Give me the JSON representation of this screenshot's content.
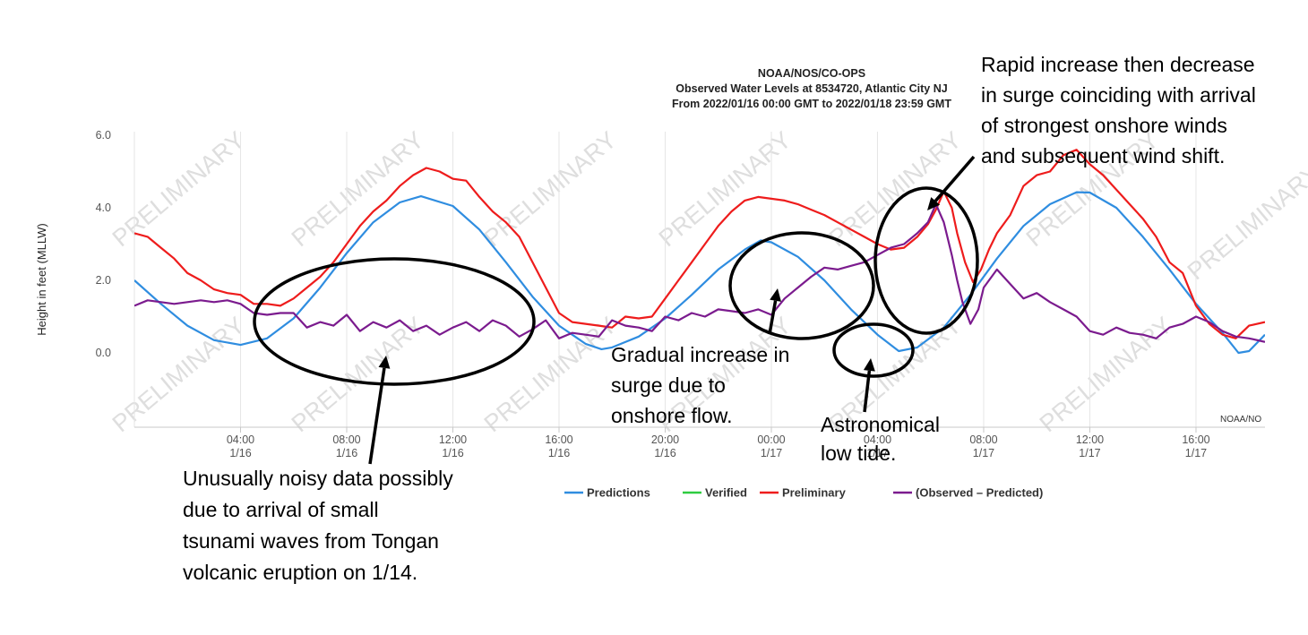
{
  "chart_data": {
    "type": "line",
    "title": "NOAA/NOS/CO-OPS",
    "subtitle": [
      "Observed Water Levels at 8534720, Atlantic City NJ",
      "From 2022/01/16 00:00 GMT to 2022/01/18 23:59 GMT"
    ],
    "ylabel": "Height in feet (MLLW)",
    "xlabel": "",
    "ylim": [
      -2.05,
      6.1
    ],
    "xlim": [
      0,
      42.6
    ],
    "x_unit": "hours since 2022/01/16 00:00 GMT",
    "y_ticks": [
      "6.0",
      "4.0",
      "2.0",
      "0.0"
    ],
    "y_tick_values": [
      6,
      4,
      2,
      0
    ],
    "x_ticks": [
      {
        "x": 4,
        "time": "04:00",
        "date": "1/16"
      },
      {
        "x": 8,
        "time": "08:00",
        "date": "1/16"
      },
      {
        "x": 12,
        "time": "12:00",
        "date": "1/16"
      },
      {
        "x": 16,
        "time": "16:00",
        "date": "1/16"
      },
      {
        "x": 20,
        "time": "20:00",
        "date": "1/16"
      },
      {
        "x": 24,
        "time": "00:00",
        "date": "1/17"
      },
      {
        "x": 28,
        "time": "04:00",
        "date": "1/17"
      },
      {
        "x": 32,
        "time": "08:00",
        "date": "1/17"
      },
      {
        "x": 36,
        "time": "12:00",
        "date": "1/17"
      },
      {
        "x": 40,
        "time": "16:00",
        "date": "1/17"
      }
    ],
    "grid": "vertical",
    "legend_position": "bottom",
    "watermark": "PRELIMINARY",
    "credit": "NOAA/NO",
    "series": [
      {
        "name": "Predictions",
        "color": "#2f8de0",
        "points": [
          [
            0,
            2.0
          ],
          [
            1,
            1.35
          ],
          [
            2,
            0.75
          ],
          [
            3,
            0.35
          ],
          [
            4,
            0.22
          ],
          [
            5,
            0.4
          ],
          [
            6,
            0.95
          ],
          [
            7,
            1.8
          ],
          [
            8,
            2.75
          ],
          [
            9,
            3.6
          ],
          [
            10,
            4.15
          ],
          [
            10.8,
            4.32
          ],
          [
            12,
            4.05
          ],
          [
            13,
            3.4
          ],
          [
            14,
            2.5
          ],
          [
            15,
            1.55
          ],
          [
            16,
            0.75
          ],
          [
            17,
            0.25
          ],
          [
            17.6,
            0.1
          ],
          [
            18,
            0.15
          ],
          [
            19,
            0.45
          ],
          [
            20,
            0.95
          ],
          [
            21,
            1.6
          ],
          [
            22,
            2.3
          ],
          [
            23,
            2.85
          ],
          [
            23.6,
            3.1
          ],
          [
            24,
            3.05
          ],
          [
            25,
            2.65
          ],
          [
            26,
            2.0
          ],
          [
            27,
            1.2
          ],
          [
            28,
            0.5
          ],
          [
            28.8,
            0.05
          ],
          [
            29.5,
            0.15
          ],
          [
            30.5,
            0.7
          ],
          [
            31.5,
            1.6
          ],
          [
            32.5,
            2.6
          ],
          [
            33.5,
            3.5
          ],
          [
            34.5,
            4.1
          ],
          [
            35.5,
            4.43
          ],
          [
            36,
            4.42
          ],
          [
            37,
            4.0
          ],
          [
            38,
            3.2
          ],
          [
            39,
            2.3
          ],
          [
            40,
            1.35
          ],
          [
            41,
            0.55
          ],
          [
            41.6,
            0.0
          ],
          [
            42,
            0.05
          ],
          [
            42.6,
            0.5
          ]
        ]
      },
      {
        "name": "Verified",
        "color": "#2ecc40",
        "points": []
      },
      {
        "name": "Preliminary",
        "color": "#ee1c1c",
        "points": [
          [
            0,
            3.3
          ],
          [
            0.5,
            3.2
          ],
          [
            1,
            2.9
          ],
          [
            1.5,
            2.6
          ],
          [
            2,
            2.2
          ],
          [
            2.5,
            2.0
          ],
          [
            3,
            1.75
          ],
          [
            3.5,
            1.65
          ],
          [
            4,
            1.6
          ],
          [
            4.5,
            1.35
          ],
          [
            5,
            1.35
          ],
          [
            5.5,
            1.3
          ],
          [
            6,
            1.5
          ],
          [
            6.5,
            1.8
          ],
          [
            7,
            2.1
          ],
          [
            7.5,
            2.5
          ],
          [
            8,
            3.0
          ],
          [
            8.5,
            3.5
          ],
          [
            9,
            3.9
          ],
          [
            9.5,
            4.2
          ],
          [
            10,
            4.6
          ],
          [
            10.5,
            4.9
          ],
          [
            11,
            5.1
          ],
          [
            11.5,
            5.0
          ],
          [
            12,
            4.8
          ],
          [
            12.5,
            4.75
          ],
          [
            13,
            4.3
          ],
          [
            13.5,
            3.9
          ],
          [
            14,
            3.6
          ],
          [
            14.5,
            3.2
          ],
          [
            15,
            2.5
          ],
          [
            15.5,
            1.8
          ],
          [
            16,
            1.1
          ],
          [
            16.5,
            0.85
          ],
          [
            17,
            0.8
          ],
          [
            17.5,
            0.75
          ],
          [
            18,
            0.7
          ],
          [
            18.5,
            1.0
          ],
          [
            19,
            0.95
          ],
          [
            19.5,
            1.0
          ],
          [
            20,
            1.5
          ],
          [
            20.5,
            2.0
          ],
          [
            21,
            2.5
          ],
          [
            21.5,
            3.0
          ],
          [
            22,
            3.5
          ],
          [
            22.5,
            3.9
          ],
          [
            23,
            4.2
          ],
          [
            23.5,
            4.3
          ],
          [
            24,
            4.25
          ],
          [
            24.5,
            4.2
          ],
          [
            25,
            4.1
          ],
          [
            25.5,
            3.95
          ],
          [
            26,
            3.8
          ],
          [
            26.5,
            3.6
          ],
          [
            27,
            3.4
          ],
          [
            27.5,
            3.2
          ],
          [
            28,
            3.0
          ],
          [
            28.5,
            2.85
          ],
          [
            29,
            2.9
          ],
          [
            29.5,
            3.2
          ],
          [
            29.9,
            3.55
          ],
          [
            30.2,
            3.95
          ],
          [
            30.5,
            4.45
          ],
          [
            30.8,
            4.0
          ],
          [
            31,
            3.3
          ],
          [
            31.3,
            2.5
          ],
          [
            31.6,
            1.95
          ],
          [
            31.9,
            2.3
          ],
          [
            32.2,
            2.85
          ],
          [
            32.5,
            3.3
          ],
          [
            33,
            3.8
          ],
          [
            33.5,
            4.6
          ],
          [
            34,
            4.9
          ],
          [
            34.5,
            5.0
          ],
          [
            35,
            5.45
          ],
          [
            35.5,
            5.6
          ],
          [
            36,
            5.2
          ],
          [
            36.5,
            4.9
          ],
          [
            37,
            4.5
          ],
          [
            37.5,
            4.1
          ],
          [
            38,
            3.7
          ],
          [
            38.5,
            3.2
          ],
          [
            39,
            2.5
          ],
          [
            39.5,
            2.2
          ],
          [
            40,
            1.3
          ],
          [
            40.5,
            0.8
          ],
          [
            41,
            0.5
          ],
          [
            41.5,
            0.4
          ],
          [
            42,
            0.75
          ],
          [
            42.6,
            0.85
          ]
        ]
      },
      {
        "name": "(Observed – Predicted)",
        "color": "#7b1b8e",
        "points": [
          [
            0,
            1.3
          ],
          [
            0.5,
            1.45
          ],
          [
            1,
            1.4
          ],
          [
            1.5,
            1.35
          ],
          [
            2,
            1.4
          ],
          [
            2.5,
            1.45
          ],
          [
            3,
            1.4
          ],
          [
            3.5,
            1.45
          ],
          [
            4,
            1.35
          ],
          [
            4.5,
            1.1
          ],
          [
            5,
            1.05
          ],
          [
            5.5,
            1.1
          ],
          [
            6,
            1.1
          ],
          [
            6.5,
            0.7
          ],
          [
            7,
            0.85
          ],
          [
            7.5,
            0.75
          ],
          [
            8,
            1.05
          ],
          [
            8.5,
            0.6
          ],
          [
            9,
            0.85
          ],
          [
            9.5,
            0.7
          ],
          [
            10,
            0.9
          ],
          [
            10.5,
            0.6
          ],
          [
            11,
            0.75
          ],
          [
            11.5,
            0.5
          ],
          [
            12,
            0.7
          ],
          [
            12.5,
            0.85
          ],
          [
            13,
            0.6
          ],
          [
            13.5,
            0.9
          ],
          [
            14,
            0.75
          ],
          [
            14.5,
            0.45
          ],
          [
            15,
            0.65
          ],
          [
            15.5,
            0.9
          ],
          [
            16,
            0.4
          ],
          [
            16.5,
            0.55
          ],
          [
            17,
            0.5
          ],
          [
            17.5,
            0.45
          ],
          [
            18,
            0.9
          ],
          [
            18.5,
            0.75
          ],
          [
            19,
            0.7
          ],
          [
            19.5,
            0.6
          ],
          [
            20,
            1.0
          ],
          [
            20.5,
            0.9
          ],
          [
            21,
            1.1
          ],
          [
            21.5,
            1.0
          ],
          [
            22,
            1.2
          ],
          [
            22.5,
            1.15
          ],
          [
            23,
            1.1
          ],
          [
            23.5,
            1.2
          ],
          [
            24,
            1.05
          ],
          [
            24.5,
            1.5
          ],
          [
            25,
            1.8
          ],
          [
            25.5,
            2.1
          ],
          [
            26,
            2.35
          ],
          [
            26.5,
            2.3
          ],
          [
            27,
            2.4
          ],
          [
            27.5,
            2.5
          ],
          [
            28,
            2.7
          ],
          [
            28.5,
            2.9
          ],
          [
            29,
            3.0
          ],
          [
            29.5,
            3.3
          ],
          [
            29.9,
            3.6
          ],
          [
            30.2,
            4.1
          ],
          [
            30.5,
            3.6
          ],
          [
            30.8,
            2.7
          ],
          [
            31,
            2.0
          ],
          [
            31.2,
            1.4
          ],
          [
            31.5,
            0.8
          ],
          [
            31.8,
            1.2
          ],
          [
            32,
            1.8
          ],
          [
            32.5,
            2.3
          ],
          [
            33,
            1.9
          ],
          [
            33.5,
            1.5
          ],
          [
            34,
            1.65
          ],
          [
            34.5,
            1.4
          ],
          [
            35,
            1.2
          ],
          [
            35.5,
            1.0
          ],
          [
            36,
            0.6
          ],
          [
            36.5,
            0.5
          ],
          [
            37,
            0.7
          ],
          [
            37.5,
            0.55
          ],
          [
            38,
            0.5
          ],
          [
            38.5,
            0.4
          ],
          [
            39,
            0.7
          ],
          [
            39.5,
            0.8
          ],
          [
            40,
            1.0
          ],
          [
            40.5,
            0.85
          ],
          [
            41,
            0.6
          ],
          [
            41.5,
            0.45
          ],
          [
            42,
            0.4
          ],
          [
            42.6,
            0.3
          ]
        ]
      }
    ],
    "annotations": [
      {
        "id": "tsunami",
        "lines": [
          "Unusually noisy data possibly",
          "due to arrival of small",
          "tsunami waves from Tongan",
          "volcanic eruption on 1/14."
        ]
      },
      {
        "id": "gradual",
        "lines": [
          "Gradual increase in",
          "surge due to",
          "onshore flow."
        ]
      },
      {
        "id": "lowtide",
        "lines": [
          "Astronomical",
          "low tide."
        ]
      },
      {
        "id": "rapid",
        "lines": [
          "Rapid increase then  decrease",
          "in surge coinciding with arrival",
          "of strongest onshore winds",
          "and subsequent wind shift."
        ]
      }
    ]
  }
}
